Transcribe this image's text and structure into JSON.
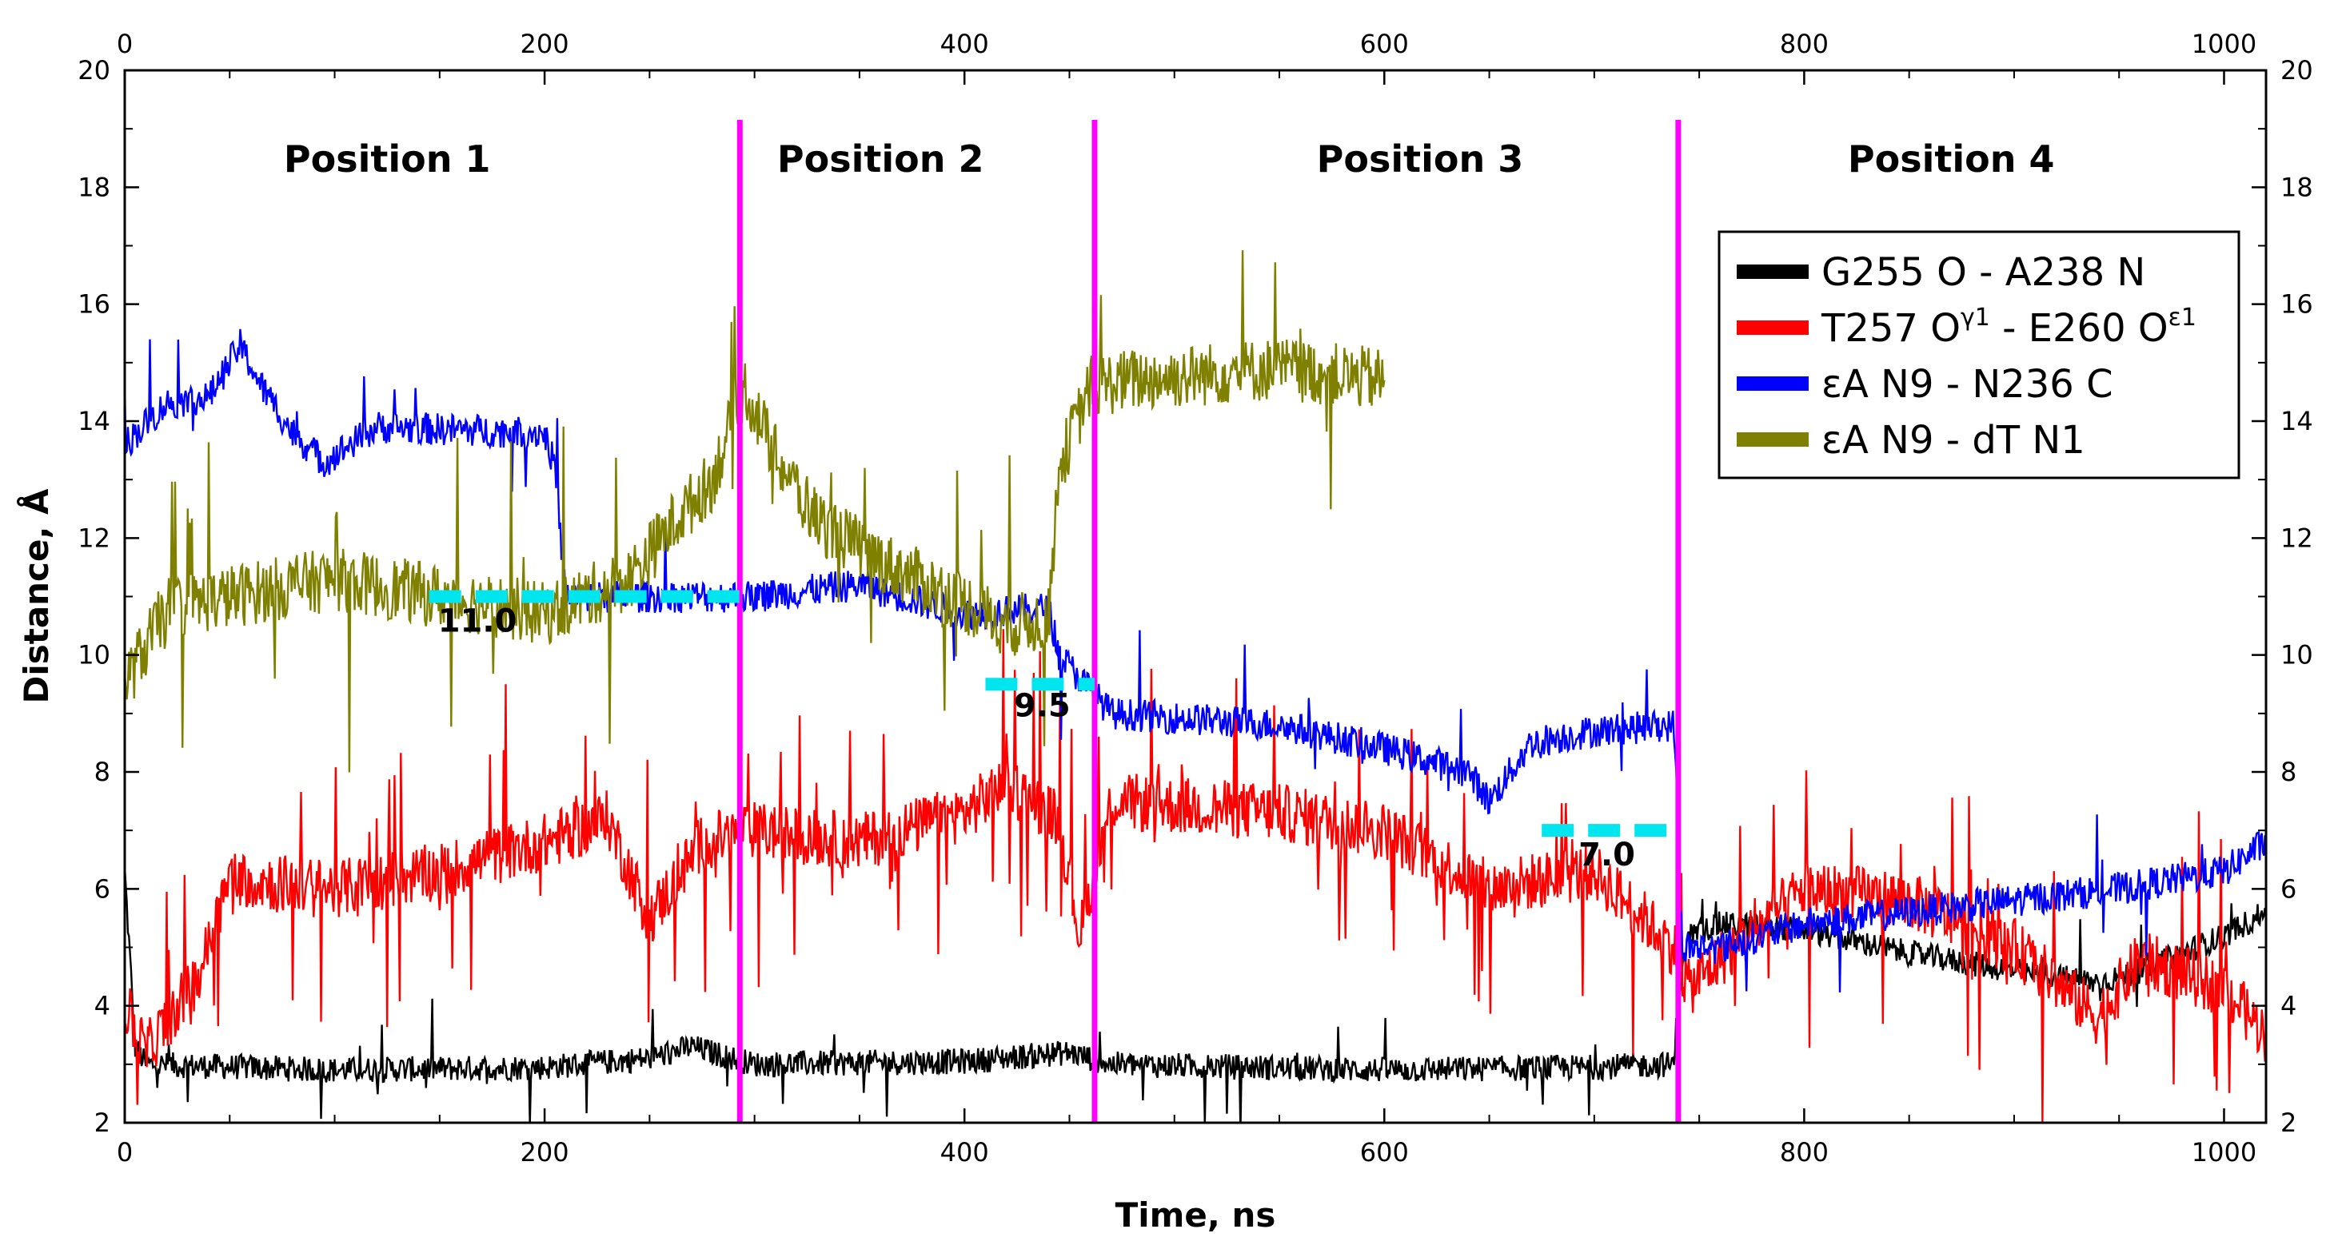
{
  "chart_data": {
    "type": "line",
    "xlabel": "Time, ns",
    "ylabel": "Distance, Å",
    "xlim": [
      0,
      1020
    ],
    "ylim": [
      2,
      20
    ],
    "x_ticks": [
      0,
      200,
      400,
      600,
      800,
      1000
    ],
    "y_ticks": [
      2,
      4,
      6,
      8,
      10,
      12,
      14,
      16,
      18,
      20
    ],
    "grid": false,
    "legend_position": "top-right",
    "series": [
      {
        "name": "G255 O - A238 N",
        "legend_main": "G255 O - A238 N",
        "color": "#000000",
        "noise": 0.22,
        "spikes": 0.02,
        "points": [
          [
            0,
            6.3
          ],
          [
            5,
            3.3
          ],
          [
            10,
            3.0
          ],
          [
            100,
            2.9
          ],
          [
            200,
            2.95
          ],
          [
            250,
            3.1
          ],
          [
            270,
            3.3
          ],
          [
            300,
            3.0
          ],
          [
            400,
            3.05
          ],
          [
            450,
            3.2
          ],
          [
            470,
            3.0
          ],
          [
            600,
            2.9
          ],
          [
            700,
            2.95
          ],
          [
            738,
            3.0
          ],
          [
            740,
            4.2
          ],
          [
            745,
            5.2
          ],
          [
            760,
            5.4
          ],
          [
            800,
            5.3
          ],
          [
            850,
            4.9
          ],
          [
            900,
            4.6
          ],
          [
            940,
            4.4
          ],
          [
            960,
            4.6
          ],
          [
            1000,
            5.2
          ],
          [
            1020,
            5.6
          ]
        ]
      },
      {
        "name": "T257 Oγ1 - E260 Oε1",
        "legend_main": "T257 O",
        "legend_sup1": "γ1",
        "legend_mid": " - E260 O",
        "legend_sup2": "ε1",
        "color": "#ff0000",
        "noise": 0.5,
        "spikes": 0.09,
        "points": [
          [
            0,
            4.0
          ],
          [
            10,
            3.2
          ],
          [
            35,
            4.5
          ],
          [
            50,
            6.2
          ],
          [
            100,
            6.0
          ],
          [
            150,
            6.3
          ],
          [
            200,
            6.8
          ],
          [
            230,
            7.2
          ],
          [
            250,
            5.5
          ],
          [
            275,
            6.8
          ],
          [
            300,
            7.0
          ],
          [
            350,
            6.8
          ],
          [
            400,
            7.3
          ],
          [
            420,
            7.8
          ],
          [
            445,
            7.2
          ],
          [
            455,
            5.2
          ],
          [
            470,
            7.5
          ],
          [
            550,
            7.3
          ],
          [
            600,
            7.0
          ],
          [
            650,
            6.0
          ],
          [
            700,
            6.3
          ],
          [
            738,
            5.0
          ],
          [
            745,
            4.3
          ],
          [
            760,
            4.8
          ],
          [
            800,
            6.0
          ],
          [
            850,
            5.8
          ],
          [
            900,
            5.0
          ],
          [
            940,
            3.8
          ],
          [
            960,
            4.8
          ],
          [
            1000,
            4.3
          ],
          [
            1020,
            3.5
          ]
        ]
      },
      {
        "name": "εA N9 - N236 C",
        "legend_main": "εA N9 - N236 C",
        "color": "#0000ff",
        "noise": 0.28,
        "spikes": 0.02,
        "points": [
          [
            0,
            13.6
          ],
          [
            20,
            14.3
          ],
          [
            40,
            14.4
          ],
          [
            55,
            15.3
          ],
          [
            65,
            14.6
          ],
          [
            80,
            13.8
          ],
          [
            95,
            13.3
          ],
          [
            120,
            13.9
          ],
          [
            200,
            13.8
          ],
          [
            205,
            13.2
          ],
          [
            210,
            11.0
          ],
          [
            250,
            11.0
          ],
          [
            300,
            11.0
          ],
          [
            350,
            11.2
          ],
          [
            400,
            10.7
          ],
          [
            440,
            10.8
          ],
          [
            445,
            10.0
          ],
          [
            470,
            9.0
          ],
          [
            550,
            8.8
          ],
          [
            600,
            8.4
          ],
          [
            640,
            8.0
          ],
          [
            650,
            7.5
          ],
          [
            670,
            8.5
          ],
          [
            700,
            8.7
          ],
          [
            738,
            8.8
          ],
          [
            742,
            5.0
          ],
          [
            760,
            5.0
          ],
          [
            800,
            5.4
          ],
          [
            850,
            5.6
          ],
          [
            900,
            5.8
          ],
          [
            950,
            6.0
          ],
          [
            1000,
            6.3
          ],
          [
            1020,
            6.8
          ]
        ]
      },
      {
        "name": "εA N9 - dT N1",
        "legend_main": "εA N9 - dT N1",
        "color": "#808000",
        "noise": 0.55,
        "spikes": 0.05,
        "points": [
          [
            0,
            9.5
          ],
          [
            20,
            10.8
          ],
          [
            50,
            11.0
          ],
          [
            100,
            11.3
          ],
          [
            150,
            11.0
          ],
          [
            200,
            10.7
          ],
          [
            240,
            11.3
          ],
          [
            260,
            12.2
          ],
          [
            280,
            13.0
          ],
          [
            295,
            14.6
          ],
          [
            310,
            13.4
          ],
          [
            330,
            12.3
          ],
          [
            360,
            11.6
          ],
          [
            400,
            10.9
          ],
          [
            420,
            10.5
          ],
          [
            440,
            10.6
          ],
          [
            445,
            13.2
          ],
          [
            460,
            14.6
          ],
          [
            480,
            14.7
          ],
          [
            550,
            14.9
          ],
          [
            600,
            14.7
          ]
        ]
      }
    ],
    "region_labels": [
      "Position 1",
      "Position 2",
      "Position 3",
      "Position 4"
    ],
    "region_label_x": [
      125,
      360,
      617,
      870
    ],
    "boundaries": [
      293,
      462,
      740
    ],
    "reference_lines": [
      {
        "label": "11.0",
        "y": 11.0,
        "x_start": 145,
        "x_end": 293,
        "label_x": 168,
        "label_y": 10.4
      },
      {
        "label": "9.5",
        "y": 9.5,
        "x_start": 410,
        "x_end": 462,
        "label_x": 437,
        "label_y": 8.95
      },
      {
        "label": "7.0",
        "y": 7.0,
        "x_start": 675,
        "x_end": 740,
        "label_x": 706,
        "label_y": 6.4
      }
    ],
    "reference_color": "#00e5ee",
    "boundary_color": "#ff00ff"
  }
}
